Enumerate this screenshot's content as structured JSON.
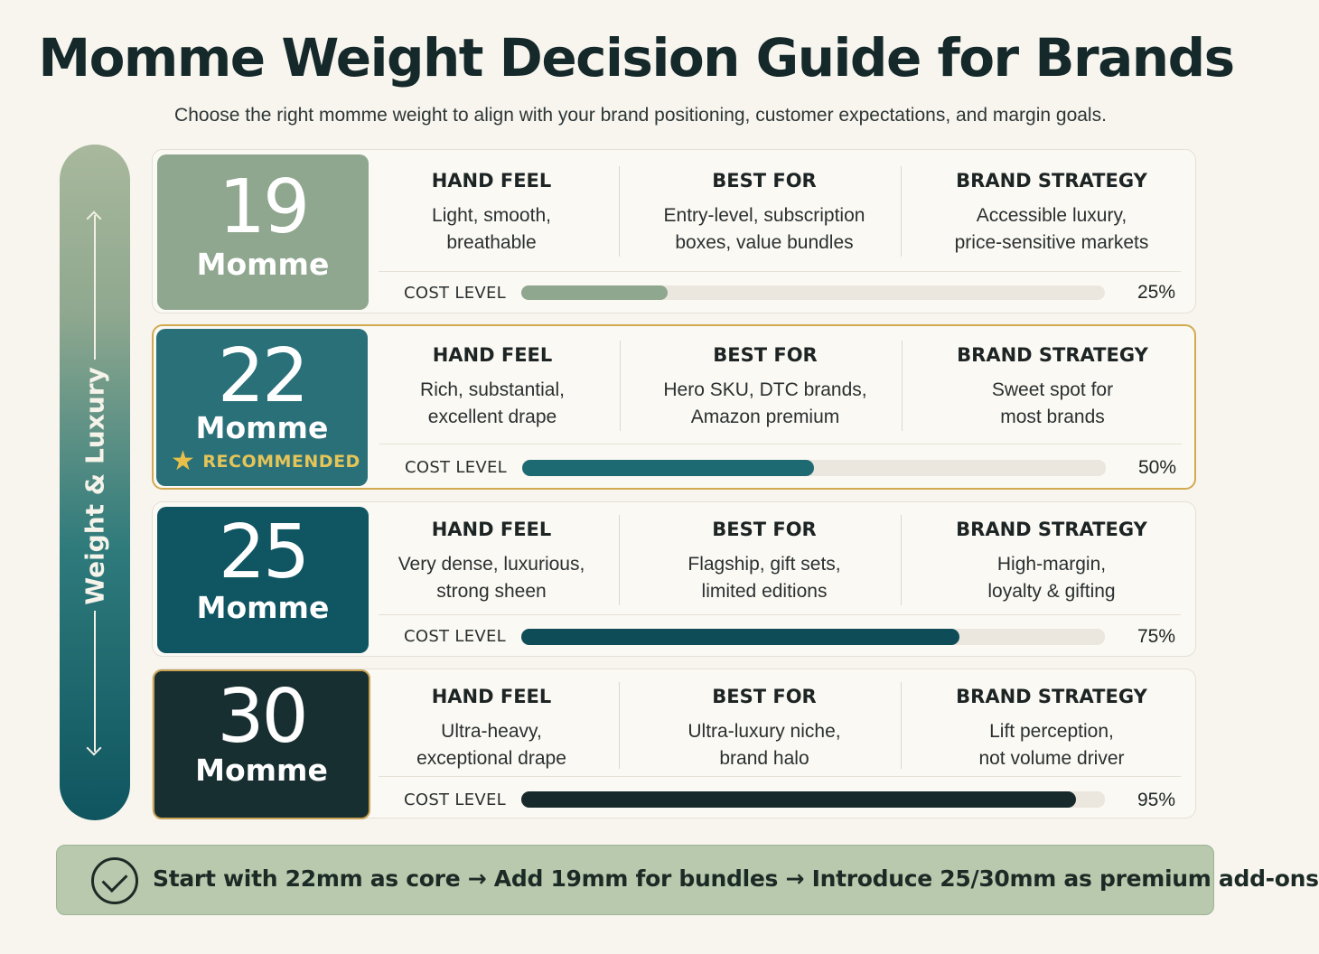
{
  "title": "Momme Weight Decision Guide for Brands",
  "subtitle": "Choose the right momme weight to align with your brand positioning, customer expectations, and margin goals.",
  "side_label": "Weight & Luxury",
  "column_headers": {
    "hand_feel": "HAND FEEL",
    "best_for": "BEST FOR",
    "brand_strategy": "BRAND STRATEGY"
  },
  "cost_label": "COST LEVEL",
  "rows": [
    {
      "weight": "19",
      "unit": "Momme",
      "badge_color": "#8fa68f",
      "hand_feel": [
        "Light, smooth,",
        "breathable"
      ],
      "best_for": [
        "Entry-level, subscription",
        "boxes, value bundles"
      ],
      "brand_strategy": [
        "Accessible luxury,",
        "price-sensitive markets"
      ],
      "cost_percent": 25,
      "cost_text": "25%",
      "bar_color": "#8fa68f"
    },
    {
      "weight": "22",
      "unit": "Momme",
      "badge_color": "#2a7079",
      "recommended": "RECOMMENDED",
      "hand_feel": [
        "Rich, substantial,",
        "excellent drape"
      ],
      "best_for": [
        "Hero SKU, DTC brands,",
        "Amazon premium"
      ],
      "brand_strategy": [
        "Sweet spot for",
        "most brands"
      ],
      "cost_percent": 50,
      "cost_text": "50%",
      "bar_color": "#1e6a73"
    },
    {
      "weight": "25",
      "unit": "Momme",
      "badge_color": "#0f5662",
      "hand_feel": [
        "Very dense, luxurious,",
        "strong sheen"
      ],
      "best_for": [
        "Flagship, gift sets,",
        "limited editions"
      ],
      "brand_strategy": [
        "High-margin,",
        "loyalty & gifting"
      ],
      "cost_percent": 75,
      "cost_text": "75%",
      "bar_color": "#0e4d58"
    },
    {
      "weight": "30",
      "unit": "Momme",
      "badge_color": "#182f31",
      "hand_feel": [
        "Ultra-heavy,",
        "exceptional drape"
      ],
      "best_for": [
        "Ultra-luxury niche,",
        "brand halo"
      ],
      "brand_strategy": [
        "Lift perception,",
        "not volume driver"
      ],
      "cost_percent": 95,
      "cost_text": "95%",
      "bar_color": "#17292b"
    }
  ],
  "footer": {
    "text": "Start with 22mm as core → Add 19mm for bundles → Introduce 25/30mm as premium add-ons"
  }
}
